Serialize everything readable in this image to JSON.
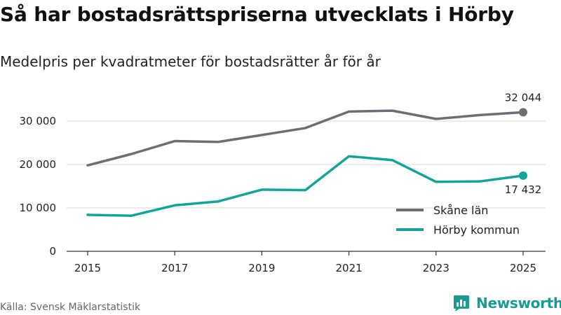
{
  "title": "Så har bostadsrättspriserna utvecklats i Hörby",
  "subtitle": "Medelpris per kvadratmeter för bostadsrätter år för år",
  "source": "Källa: Svensk Mäklarstatistik",
  "brand": "Newsworthy",
  "colors": {
    "skane": "#6e6d73",
    "horby": "#12a597",
    "grid": "#d9d9d9",
    "axis": "#333333",
    "brand": "#1a9a94"
  },
  "chart_data": {
    "type": "line",
    "title": "Så har bostadsrättspriserna utvecklats i Hörby",
    "subtitle": "Medelpris per kvadratmeter för bostadsrätter år för år",
    "xlabel": "",
    "ylabel": "",
    "x": [
      2015,
      2016,
      2017,
      2018,
      2019,
      2020,
      2021,
      2022,
      2023,
      2024,
      2025
    ],
    "xticks": [
      "2015",
      "2017",
      "2019",
      "2021",
      "2023",
      "2025"
    ],
    "yticks": [
      0,
      10000,
      20000,
      30000
    ],
    "ytick_labels": [
      "0",
      "10 000",
      "20 000",
      "30 000"
    ],
    "ylim": [
      0,
      34000
    ],
    "grid": true,
    "legend_position": "bottom-right",
    "series": [
      {
        "name": "Skåne län",
        "color_key": "skane",
        "values": [
          19800,
          22400,
          25400,
          25200,
          26800,
          28400,
          32200,
          32400,
          30500,
          31400,
          32044
        ],
        "end_label": "32 044"
      },
      {
        "name": "Hörby kommun",
        "color_key": "horby",
        "values": [
          8400,
          8200,
          10600,
          11500,
          14200,
          14100,
          21900,
          21000,
          16000,
          16100,
          17432
        ],
        "end_label": "17 432"
      }
    ]
  }
}
